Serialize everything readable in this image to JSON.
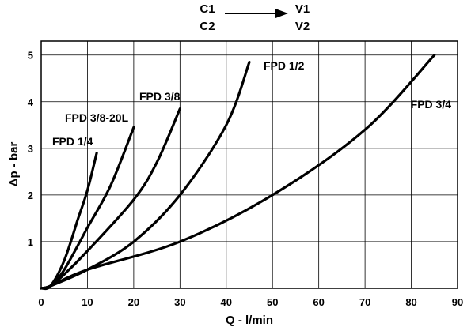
{
  "flow_header": {
    "from_top": "C1",
    "from_bottom": "C2",
    "to_top": "V1",
    "to_bottom": "V2"
  },
  "chart_data": {
    "type": "line",
    "title": "",
    "xlabel": "Q - l/min",
    "ylabel": "Δp - bar",
    "xlim": [
      0,
      90
    ],
    "ylim": [
      0,
      5.3
    ],
    "xticks": [
      0,
      10,
      20,
      30,
      40,
      50,
      60,
      70,
      80,
      90
    ],
    "yticks": [
      1,
      2,
      3,
      4,
      5
    ],
    "grid": true,
    "series": [
      {
        "name": "FPD 1/4",
        "x": [
          2,
          5,
          8,
          10,
          12
        ],
        "y": [
          0.05,
          0.6,
          1.5,
          2.1,
          2.9
        ]
      },
      {
        "name": "FPD 3/8-20L",
        "x": [
          2,
          5,
          10,
          15,
          20
        ],
        "y": [
          0.05,
          0.4,
          1.3,
          2.2,
          3.45
        ]
      },
      {
        "name": "FPD 3/8",
        "x": [
          2,
          5,
          10,
          20,
          25,
          30
        ],
        "y": [
          0.05,
          0.3,
          0.8,
          1.9,
          2.7,
          3.85
        ]
      },
      {
        "name": "FPD 1/2",
        "x": [
          2,
          10,
          20,
          30,
          40,
          45
        ],
        "y": [
          0.05,
          0.4,
          1.0,
          2.0,
          3.5,
          4.85
        ]
      },
      {
        "name": "FPD 3/4",
        "x": [
          2,
          10,
          30,
          50,
          70,
          85
        ],
        "y": [
          0.05,
          0.4,
          1.0,
          2.0,
          3.4,
          5.0
        ]
      }
    ]
  }
}
